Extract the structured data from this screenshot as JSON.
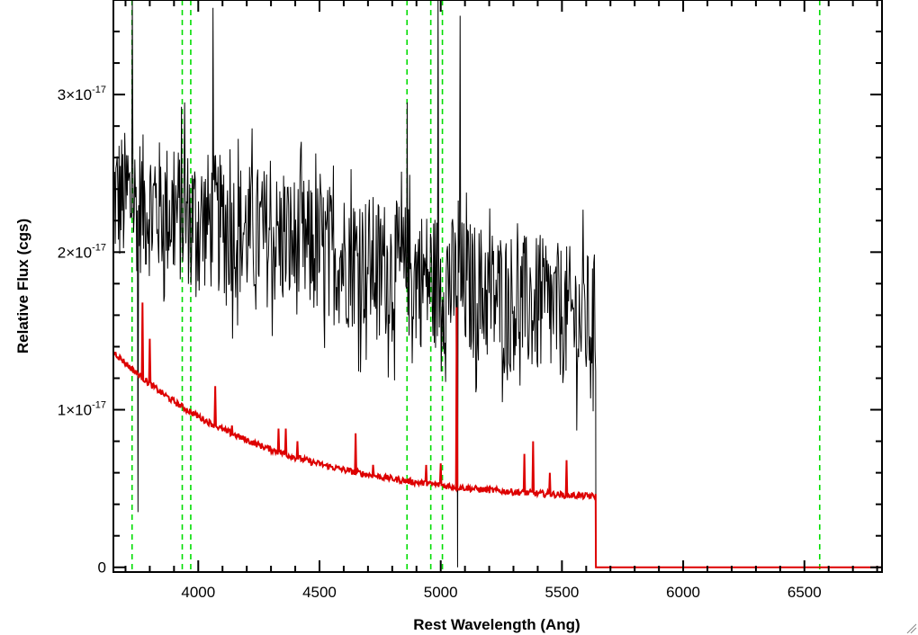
{
  "chart_data": {
    "type": "line",
    "title": "",
    "xlabel": "Rest Wavelength (Ang)",
    "ylabel": "Relative Flux (cgs)",
    "xlim": [
      3650,
      6820
    ],
    "ylim": [
      -3e-19,
      3.6e-17
    ],
    "x_ticks": [
      4000,
      4500,
      5000,
      5500,
      6000,
      6500
    ],
    "x_tick_labels": [
      "4000",
      "4500",
      "5000",
      "5500",
      "6000",
      "6500"
    ],
    "y_ticks": [
      0,
      1e-17,
      2e-17,
      3e-17
    ],
    "y_tick_labels": [
      {
        "mantissa": "0",
        "exponent": ""
      },
      {
        "mantissa": "1×10",
        "exponent": "-17"
      },
      {
        "mantissa": "2×10",
        "exponent": "-17"
      },
      {
        "mantissa": "3×10",
        "exponent": "-17"
      }
    ],
    "grid": false,
    "legend": "none",
    "reference_lines": {
      "color": "#00dd00",
      "style": "dashed",
      "x": [
        3727,
        3934,
        3969,
        4861,
        4959,
        5007,
        6563
      ]
    },
    "series": [
      {
        "color": "#000000",
        "style": "noisy-observed-spectrum",
        "x_range": [
          3650,
          5640
        ],
        "trend_start": 2.35e-17,
        "trend_end": 1.55e-17,
        "noise_amplitude": 4.5e-18,
        "spikes": [
          {
            "x": 3728,
            "y": 3.6e-17
          },
          {
            "x": 3752,
            "y": 3.5e-18
          },
          {
            "x": 3945,
            "y": 2.95e-17
          },
          {
            "x": 4060,
            "y": 3.55e-17
          },
          {
            "x": 4861,
            "y": 2.95e-17
          },
          {
            "x": 4990,
            "y": 3.6e-17
          },
          {
            "x": 5070,
            "y": 0.0
          },
          {
            "x": 5080,
            "y": 3.5e-17
          }
        ],
        "end_drop": {
          "x": 5640,
          "y": 0.0
        }
      },
      {
        "color": "#dd0000",
        "style": "model-spectrum",
        "x_range": [
          3650,
          5640
        ],
        "continuum_start": 1.37e-17,
        "continuum_end": 4.5e-18,
        "emission_lines": [
          {
            "x": 3770,
            "y": 1.68e-17
          },
          {
            "x": 3800,
            "y": 1.45e-17
          },
          {
            "x": 4070,
            "y": 1.15e-17
          },
          {
            "x": 4140,
            "y": 9e-18
          },
          {
            "x": 4330,
            "y": 8.8e-18
          },
          {
            "x": 4360,
            "y": 8.8e-18
          },
          {
            "x": 4410,
            "y": 8e-18
          },
          {
            "x": 4650,
            "y": 8.5e-18
          },
          {
            "x": 4720,
            "y": 6.5e-18
          },
          {
            "x": 4940,
            "y": 6.5e-18
          },
          {
            "x": 5000,
            "y": 6.6e-18
          },
          {
            "x": 5065,
            "y": 1.65e-17
          },
          {
            "x": 5345,
            "y": 7.2e-18
          },
          {
            "x": 5380,
            "y": 8e-18
          },
          {
            "x": 5450,
            "y": 6e-18
          },
          {
            "x": 5520,
            "y": 6.8e-18
          }
        ],
        "tail": {
          "x_range": [
            5640,
            6820
          ],
          "y": 0.0
        }
      }
    ]
  }
}
